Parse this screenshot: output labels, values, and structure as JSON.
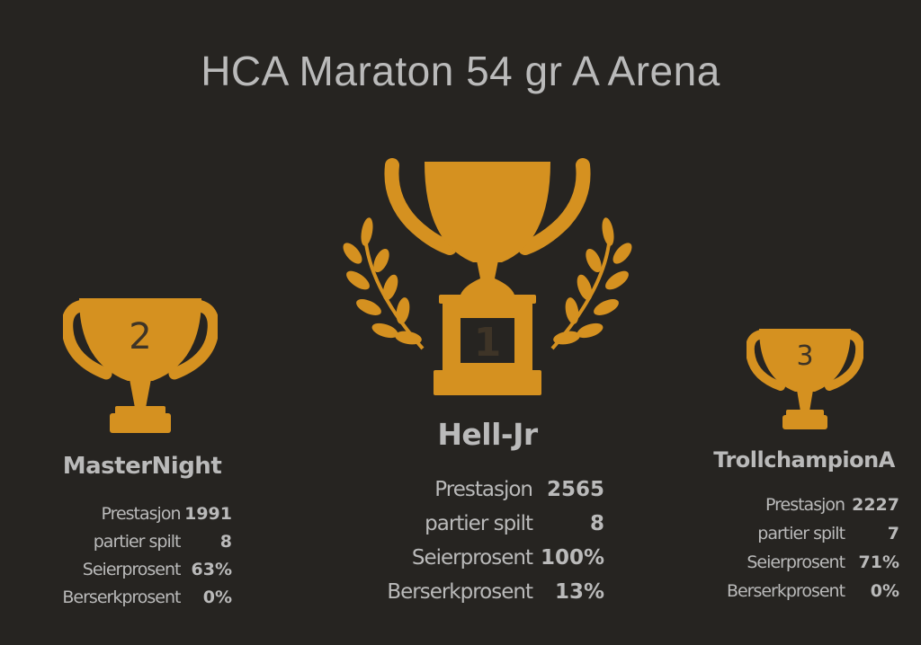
{
  "title": "HCA Maraton 54 gr A Arena",
  "colors": {
    "background": "#262421",
    "trophy": "#d59120",
    "text": "#bababa",
    "trophy_number": "#3e3427"
  },
  "podium": [
    {
      "rank": "2",
      "name": "MasterNight",
      "trophy_icon": "trophy-icon",
      "stats": [
        {
          "label": "Prestasjon",
          "value": "1991"
        },
        {
          "label": "partier spilt",
          "value": "8"
        },
        {
          "label": "Seierprosent",
          "value": "63%"
        },
        {
          "label": "Berserkprosent",
          "value": "0%"
        }
      ]
    },
    {
      "rank": "1",
      "name": "Hell-Jr",
      "trophy_icon": "trophy-with-laurels-icon",
      "stats": [
        {
          "label": "Prestasjon",
          "value": "2565"
        },
        {
          "label": "partier spilt",
          "value": "8"
        },
        {
          "label": "Seierprosent",
          "value": "100%"
        },
        {
          "label": "Berserkprosent",
          "value": "13%"
        }
      ]
    },
    {
      "rank": "3",
      "name": "TrollchampionA",
      "trophy_icon": "trophy-icon",
      "stats": [
        {
          "label": "Prestasjon",
          "value": "2227"
        },
        {
          "label": "partier spilt",
          "value": "7"
        },
        {
          "label": "Seierprosent",
          "value": "71%"
        },
        {
          "label": "Berserkprosent",
          "value": "0%"
        }
      ]
    }
  ]
}
